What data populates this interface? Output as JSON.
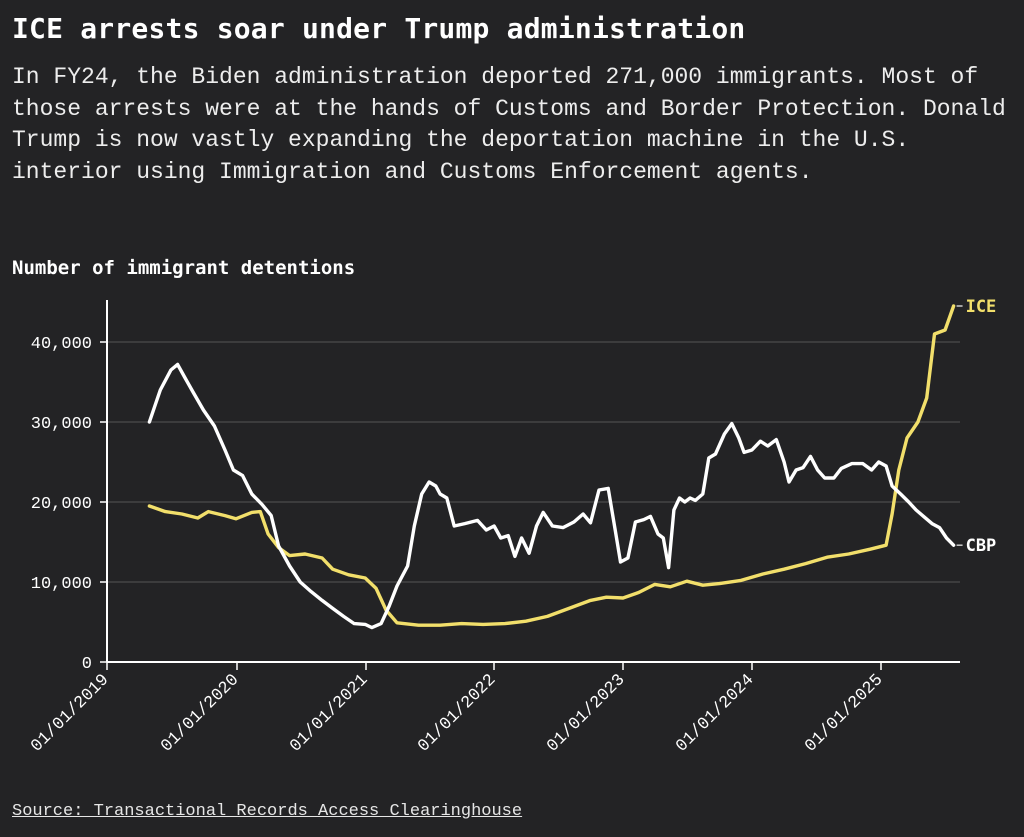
{
  "title": "ICE arrests soar under Trump administration",
  "subtitle": "In FY24, the Biden administration deported 271,000 immigrants. Most of those arrests were at the hands of Customs and Border Protection. Donald Trump is now vastly expanding the deportation machine in the U.S. interior using Immigration and Customs Enforcement agents.",
  "chart_label": "Number of immigrant detentions",
  "source": "Source: Transactional Records Access Clearinghouse",
  "colors": {
    "ice": "#f2df6b",
    "cbp": "#ffffff",
    "background": "#232325",
    "grid": "#555555"
  },
  "chart_data": {
    "type": "line",
    "xlabel": "",
    "ylabel": "",
    "x_ticks": [
      "01/01/2019",
      "01/01/2020",
      "01/01/2021",
      "01/01/2022",
      "01/01/2023",
      "01/01/2024",
      "01/01/2025"
    ],
    "y_ticks": [
      "0",
      "10,000",
      "20,000",
      "30,000",
      "40,000"
    ],
    "ylim": [
      0,
      45000
    ],
    "xlim": [
      "2019-01-01",
      "2025-08-01"
    ],
    "grid": "horizontal",
    "legend": "line-end labels",
    "series": [
      {
        "name": "ICE",
        "color": "#f2df6b",
        "points": [
          [
            "2019-05-01",
            19500
          ],
          [
            "2019-06-15",
            18800
          ],
          [
            "2019-08-01",
            18500
          ],
          [
            "2019-09-15",
            18000
          ],
          [
            "2019-10-15",
            18800
          ],
          [
            "2019-12-01",
            18300
          ],
          [
            "2020-01-01",
            17900
          ],
          [
            "2020-02-15",
            18700
          ],
          [
            "2020-03-10",
            18800
          ],
          [
            "2020-04-01",
            16000
          ],
          [
            "2020-05-01",
            14300
          ],
          [
            "2020-06-01",
            13300
          ],
          [
            "2020-07-15",
            13500
          ],
          [
            "2020-09-01",
            13000
          ],
          [
            "2020-10-01",
            11600
          ],
          [
            "2020-11-15",
            10900
          ],
          [
            "2021-01-01",
            10500
          ],
          [
            "2021-02-01",
            9200
          ],
          [
            "2021-03-01",
            6500
          ],
          [
            "2021-04-01",
            4900
          ],
          [
            "2021-06-01",
            4600
          ],
          [
            "2021-08-01",
            4600
          ],
          [
            "2021-10-01",
            4800
          ],
          [
            "2021-12-01",
            4700
          ],
          [
            "2022-02-01",
            4800
          ],
          [
            "2022-04-01",
            5100
          ],
          [
            "2022-06-01",
            5700
          ],
          [
            "2022-08-01",
            6700
          ],
          [
            "2022-10-01",
            7700
          ],
          [
            "2022-11-15",
            8100
          ],
          [
            "2023-01-01",
            8000
          ],
          [
            "2023-02-15",
            8700
          ],
          [
            "2023-04-01",
            9700
          ],
          [
            "2023-05-15",
            9400
          ],
          [
            "2023-07-01",
            10100
          ],
          [
            "2023-08-15",
            9600
          ],
          [
            "2023-10-01",
            9800
          ],
          [
            "2023-12-01",
            10200
          ],
          [
            "2024-02-01",
            11000
          ],
          [
            "2024-04-01",
            11600
          ],
          [
            "2024-06-01",
            12300
          ],
          [
            "2024-08-01",
            13100
          ],
          [
            "2024-10-01",
            13500
          ],
          [
            "2024-12-01",
            14100
          ],
          [
            "2025-01-15",
            14600
          ],
          [
            "2025-02-01",
            18500
          ],
          [
            "2025-02-20",
            24000
          ],
          [
            "2025-03-15",
            28000
          ],
          [
            "2025-04-15",
            30000
          ],
          [
            "2025-05-10",
            33000
          ],
          [
            "2025-06-01",
            41000
          ],
          [
            "2025-07-01",
            41500
          ],
          [
            "2025-07-25",
            44500
          ]
        ]
      },
      {
        "name": "CBP",
        "color": "#ffffff",
        "points": [
          [
            "2019-05-01",
            30000
          ],
          [
            "2019-06-01",
            34000
          ],
          [
            "2019-07-01",
            36500
          ],
          [
            "2019-07-20",
            37200
          ],
          [
            "2019-08-10",
            35500
          ],
          [
            "2019-09-01",
            33800
          ],
          [
            "2019-10-01",
            31500
          ],
          [
            "2019-11-01",
            29500
          ],
          [
            "2019-12-01",
            26500
          ],
          [
            "2019-12-25",
            24000
          ],
          [
            "2020-01-20",
            23300
          ],
          [
            "2020-02-15",
            21000
          ],
          [
            "2020-03-15",
            19700
          ],
          [
            "2020-04-10",
            18300
          ],
          [
            "2020-05-01",
            14500
          ],
          [
            "2020-06-01",
            12000
          ],
          [
            "2020-07-01",
            10000
          ],
          [
            "2020-08-01",
            8800
          ],
          [
            "2020-09-01",
            7700
          ],
          [
            "2020-10-01",
            6700
          ],
          [
            "2020-11-01",
            5700
          ],
          [
            "2020-12-01",
            4800
          ],
          [
            "2021-01-01",
            4700
          ],
          [
            "2021-01-20",
            4300
          ],
          [
            "2021-02-15",
            4800
          ],
          [
            "2021-03-10",
            7000
          ],
          [
            "2021-04-01",
            9500
          ],
          [
            "2021-05-01",
            12000
          ],
          [
            "2021-05-20",
            17000
          ],
          [
            "2021-06-10",
            21000
          ],
          [
            "2021-07-01",
            22500
          ],
          [
            "2021-07-20",
            22000
          ],
          [
            "2021-08-01",
            21000
          ],
          [
            "2021-08-20",
            20500
          ],
          [
            "2021-09-10",
            17000
          ],
          [
            "2021-10-10",
            17300
          ],
          [
            "2021-11-15",
            17700
          ],
          [
            "2021-12-10",
            16500
          ],
          [
            "2022-01-01",
            17000
          ],
          [
            "2022-01-20",
            15500
          ],
          [
            "2022-02-10",
            15800
          ],
          [
            "2022-03-01",
            13200
          ],
          [
            "2022-03-20",
            15500
          ],
          [
            "2022-04-10",
            13600
          ],
          [
            "2022-05-01",
            17000
          ],
          [
            "2022-05-20",
            18700
          ],
          [
            "2022-06-15",
            17000
          ],
          [
            "2022-07-15",
            16800
          ],
          [
            "2022-08-15",
            17500
          ],
          [
            "2022-09-10",
            18500
          ],
          [
            "2022-10-01",
            17400
          ],
          [
            "2022-10-25",
            21500
          ],
          [
            "2022-11-20",
            21700
          ],
          [
            "2022-12-10",
            16500
          ],
          [
            "2022-12-25",
            12500
          ],
          [
            "2023-01-15",
            13000
          ],
          [
            "2023-02-05",
            17500
          ],
          [
            "2023-03-01",
            17800
          ],
          [
            "2023-03-20",
            18200
          ],
          [
            "2023-04-10",
            16000
          ],
          [
            "2023-04-25",
            15500
          ],
          [
            "2023-05-10",
            11800
          ],
          [
            "2023-05-25",
            19000
          ],
          [
            "2023-06-10",
            20500
          ],
          [
            "2023-06-25",
            20000
          ],
          [
            "2023-07-10",
            20500
          ],
          [
            "2023-07-25",
            20200
          ],
          [
            "2023-08-15",
            21000
          ],
          [
            "2023-09-01",
            25500
          ],
          [
            "2023-09-20",
            26000
          ],
          [
            "2023-10-15",
            28500
          ],
          [
            "2023-11-05",
            29800
          ],
          [
            "2023-11-25",
            28000
          ],
          [
            "2023-12-10",
            26200
          ],
          [
            "2024-01-01",
            26500
          ],
          [
            "2024-01-25",
            27600
          ],
          [
            "2024-02-15",
            27000
          ],
          [
            "2024-03-10",
            27800
          ],
          [
            "2024-04-01",
            25000
          ],
          [
            "2024-04-15",
            22500
          ],
          [
            "2024-05-05",
            24000
          ],
          [
            "2024-05-25",
            24300
          ],
          [
            "2024-06-15",
            25700
          ],
          [
            "2024-07-05",
            24000
          ],
          [
            "2024-07-25",
            23000
          ],
          [
            "2024-08-20",
            23000
          ],
          [
            "2024-09-10",
            24200
          ],
          [
            "2024-10-10",
            24800
          ],
          [
            "2024-11-10",
            24800
          ],
          [
            "2024-12-05",
            24000
          ],
          [
            "2024-12-25",
            25000
          ],
          [
            "2025-01-15",
            24500
          ],
          [
            "2025-02-01",
            22000
          ],
          [
            "2025-02-25",
            21000
          ],
          [
            "2025-03-20",
            20000
          ],
          [
            "2025-04-10",
            19000
          ],
          [
            "2025-05-01",
            18200
          ],
          [
            "2025-05-25",
            17300
          ],
          [
            "2025-06-15",
            16800
          ],
          [
            "2025-07-05",
            15500
          ],
          [
            "2025-07-25",
            14600
          ]
        ]
      }
    ]
  }
}
